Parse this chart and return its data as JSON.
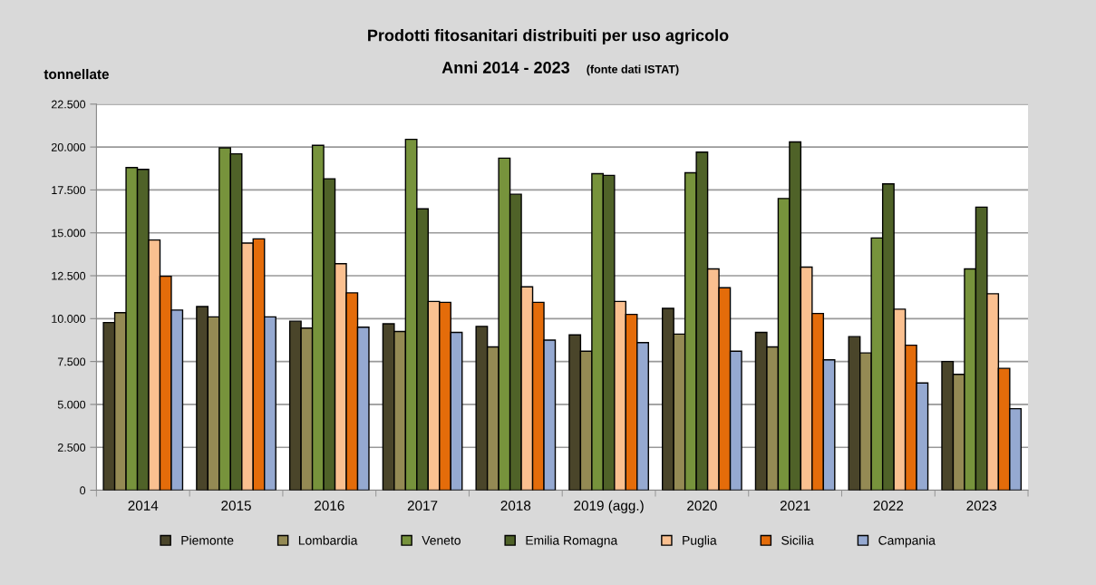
{
  "chart_data": {
    "type": "bar",
    "title": "Prodotti fitosanitari distribuiti per uso agricolo",
    "subtitle": "Anni 2014 - 2023",
    "annotations": [
      "(fonte dati ISTAT)"
    ],
    "ylabel": "tonnellate",
    "categories": [
      "2014",
      "2015",
      "2016",
      "2017",
      "2018",
      "2019 (agg.)",
      "2020",
      "2021",
      "2022",
      "2023"
    ],
    "series": [
      {
        "name": "Piemonte",
        "color": "#4a452a",
        "values": [
          9770,
          10700,
          9850,
          9700,
          9550,
          9050,
          10600,
          9200,
          8950,
          7500
        ]
      },
      {
        "name": "Lombardia",
        "color": "#948a54",
        "values": [
          10350,
          10100,
          9450,
          9250,
          8350,
          8100,
          9100,
          8350,
          8000,
          6750
        ]
      },
      {
        "name": "Veneto",
        "color": "#77933c",
        "values": [
          18800,
          19950,
          20100,
          20450,
          19350,
          18450,
          18500,
          17000,
          14700,
          12900
        ]
      },
      {
        "name": "Emilia Romagna",
        "color": "#4f6228",
        "values": [
          18700,
          19600,
          18150,
          16400,
          17250,
          18350,
          19700,
          20300,
          17850,
          16500
        ]
      },
      {
        "name": "Puglia",
        "color": "#fac090",
        "values": [
          14580,
          14400,
          13200,
          11000,
          11850,
          11000,
          12900,
          13000,
          10550,
          11450
        ]
      },
      {
        "name": "Sicilia",
        "color": "#e46c0a",
        "values": [
          12470,
          14650,
          11500,
          10950,
          10950,
          10250,
          11800,
          10300,
          8450,
          7100
        ]
      },
      {
        "name": "Campania",
        "color": "#95a9d1",
        "values": [
          10500,
          10100,
          9500,
          9200,
          8750,
          8600,
          8100,
          7600,
          6250,
          4750
        ]
      }
    ],
    "ylim": [
      0,
      22500
    ],
    "yticks": [
      {
        "value": 0,
        "label": "0"
      },
      {
        "value": 2500,
        "label": "2.500"
      },
      {
        "value": 5000,
        "label": "5.000"
      },
      {
        "value": 7500,
        "label": "7.500"
      },
      {
        "value": 10000,
        "label": "10.000"
      },
      {
        "value": 12500,
        "label": "12.500"
      },
      {
        "value": 15000,
        "label": "15.000"
      },
      {
        "value": 17500,
        "label": "17.500"
      },
      {
        "value": 20000,
        "label": "20.000"
      },
      {
        "value": 22500,
        "label": "22.500"
      }
    ],
    "grid": "y",
    "legend": "bottom"
  }
}
